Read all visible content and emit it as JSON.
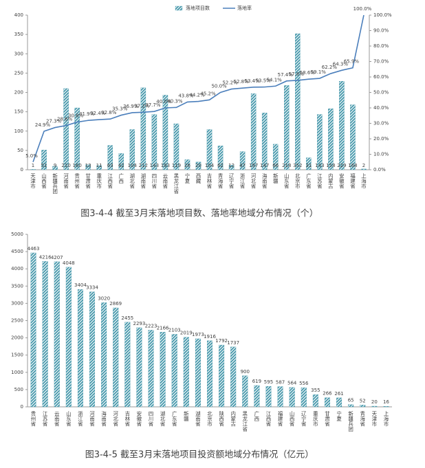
{
  "chart_data": [
    {
      "type": "combo",
      "caption": "图3-4-4  截至3月末落地项目数、落地率地域分布情况（个）",
      "legend": "top",
      "categories": [
        "天津市",
        "山西省",
        "新疆兵团",
        "河南省",
        "贵州省",
        "甘肃省",
        "重庆市",
        "江西省",
        "广西",
        "湖北省",
        "湖南省",
        "四川省",
        "云南省",
        "黑龙江省",
        "宁夏",
        "西藏",
        "吉林省",
        "青海省",
        "辽宁省",
        "浙江省",
        "河北省",
        "海南省",
        "新疆",
        "山东省",
        "北京市",
        "广东省",
        "江苏省",
        "内蒙古",
        "安徽省",
        "福建省",
        "上海市"
      ],
      "ylim": [
        0,
        400
      ],
      "yticks": [
        0,
        50,
        100,
        150,
        200,
        250,
        300,
        350,
        400
      ],
      "y2lim": [
        0,
        100
      ],
      "y2ticks": [
        {
          "value": 0,
          "label": "0.0%"
        },
        {
          "value": 10,
          "label": "10.0%"
        },
        {
          "value": 20,
          "label": "20.0%"
        },
        {
          "value": 30,
          "label": "30.0%"
        },
        {
          "value": 40,
          "label": "40.0%"
        },
        {
          "value": 50,
          "label": "50.0%"
        },
        {
          "value": 60,
          "label": "60.0%"
        },
        {
          "value": 70,
          "label": "70.0%"
        },
        {
          "value": 80,
          "label": "80.0%"
        },
        {
          "value": 90,
          "label": "90.0%"
        },
        {
          "value": 100,
          "label": "100.0%"
        }
      ],
      "series": [
        {
          "name": "落地项目数",
          "type": "bar",
          "color": "#3f94a8",
          "values": [
            1,
            51,
            9,
            210,
            160,
            13,
            11,
            63,
            42,
            104,
            212,
            143,
            193,
            119,
            26,
            20,
            104,
            62,
            12,
            47,
            197,
            147,
            66,
            218,
            352,
            31,
            143,
            158,
            229,
            168,
            2
          ]
        },
        {
          "name": "落地率",
          "type": "line",
          "axis": "y2",
          "color": "#4a7ebb",
          "values": [
            5.0,
            24.9,
            27.3,
            28.6,
            30.8,
            31.9,
            32.4,
            32.8,
            35.3,
            36.9,
            37.2,
            37.7,
            40.0,
            40.3,
            43.8,
            44.2,
            45.2,
            50.0,
            52.2,
            52.8,
            53.4,
            53.5,
            54.1,
            57.4,
            57.8,
            58.6,
            59.1,
            62.2,
            64.3,
            65.9,
            100.0
          ],
          "value_labels": [
            "5.0%",
            "24.9%",
            "27.3%",
            "28.6%",
            "30.8%",
            "31.9%",
            "32.4%",
            "32.8%",
            "35.3%",
            "36.9%",
            "37.2%",
            "37.7%",
            "40.0%",
            "40.3%",
            "43.8%",
            "44.2%",
            "45.2%",
            "50.0%",
            "52.2%",
            "52.8%",
            "53.4%",
            "53.5%",
            "54.1%",
            "57.4%",
            "57.8%",
            "58.6%",
            "59.1%",
            "62.2%",
            "64.3%",
            "65.9%",
            "100.0%"
          ]
        }
      ]
    },
    {
      "type": "bar",
      "caption": "图3-4-5  截至3月末落地项目投资额地域分布情况（亿元）",
      "categories": [
        "贵州省",
        "江苏省",
        "云南省",
        "山东省",
        "浙江省",
        "河南省",
        "海南省",
        "河北省",
        "吉林省",
        "安徽省",
        "四川省",
        "湖北省",
        "广东省",
        "新疆",
        "湖南省",
        "北京市",
        "陕西省",
        "内蒙古",
        "黑龙江省",
        "广西",
        "江西省",
        "福建省",
        "山西省",
        "辽宁省",
        "重庆市",
        "甘肃省",
        "宁夏",
        "新疆兵团",
        "青海省",
        "天津市",
        "上海市"
      ],
      "ylim": [
        0,
        5000
      ],
      "yticks": [
        0,
        500,
        1000,
        1500,
        2000,
        2500,
        3000,
        3500,
        4000,
        4500,
        5000
      ],
      "series": [
        {
          "name": "投资额",
          "type": "bar",
          "color": "#3f94a8",
          "values": [
            4463,
            4216,
            4207,
            4048,
            3404,
            3334,
            3020,
            2869,
            2455,
            2293,
            2223,
            2166,
            2103,
            2019,
            1973,
            1916,
            1792,
            1737,
            900,
            619,
            595,
            587,
            564,
            556,
            355,
            266,
            261,
            65,
            52,
            20,
            16
          ]
        }
      ]
    }
  ]
}
